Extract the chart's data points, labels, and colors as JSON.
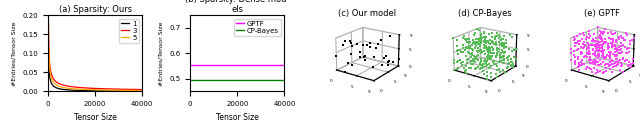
{
  "panel_a": {
    "title": "(a) Sparsity: Ours",
    "xlabel": "Tensor Size",
    "ylabel": "#Entries/Tensor Size",
    "lines": [
      {
        "label": "1",
        "color": "black"
      },
      {
        "label": "3",
        "color": "red"
      },
      {
        "label": "5",
        "color": "orange"
      }
    ],
    "xlim": [
      0,
      40000
    ],
    "ylim": [
      0,
      0.2
    ],
    "yticks": [
      0.0,
      0.05,
      0.1,
      0.15,
      0.2
    ],
    "xticks": [
      0,
      20000,
      40000
    ]
  },
  "panel_b": {
    "xlabel": "Tensor Size",
    "ylabel": "#Entries/Tensor Size",
    "lines": [
      {
        "label": "GPTF",
        "color": "#ff00ff",
        "value": 0.555
      },
      {
        "label": "CP-Bayes",
        "color": "green",
        "value": 0.495
      }
    ],
    "xlim": [
      0,
      40000
    ],
    "ylim": [
      0.45,
      0.75
    ],
    "yticks": [
      0.5,
      0.6,
      0.7
    ],
    "xticks": [
      0,
      20000,
      40000
    ],
    "title_line1": "(b) Sparsity: Dense mod-",
    "title_line2": "els"
  },
  "panel_c": {
    "title": "(c) Our model",
    "dot_color": "black",
    "n_dots": 35,
    "sparse": true
  },
  "panel_d": {
    "title": "(d) CP-Bayes",
    "dot_color": "#55bb55",
    "n_dots": 300,
    "sparse": false
  },
  "panel_e": {
    "title": "(e) GPTF",
    "dot_color": "#ff44ff",
    "n_dots": 300,
    "sparse": false
  },
  "figure_bg": "white"
}
